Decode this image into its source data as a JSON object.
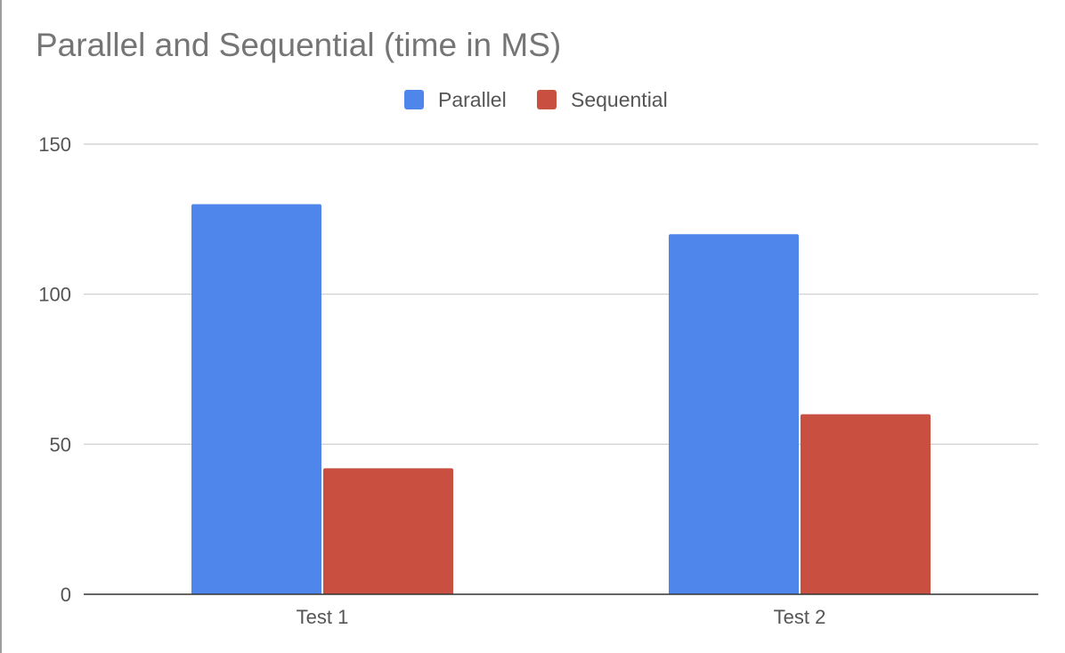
{
  "chart_data": {
    "type": "bar",
    "title": "Parallel and Sequential (time in MS)",
    "xlabel": "",
    "ylabel": "",
    "categories": [
      "Test 1",
      "Test 2"
    ],
    "series": [
      {
        "name": "Parallel",
        "values": [
          130,
          120
        ],
        "color": "#4f86ec"
      },
      {
        "name": "Sequential",
        "values": [
          42,
          60
        ],
        "color": "#c94f41"
      }
    ],
    "ylim": [
      0,
      150
    ],
    "yticks": [
      "0",
      "50",
      "100",
      "150"
    ],
    "grid": true,
    "legend_position": "top-center"
  }
}
